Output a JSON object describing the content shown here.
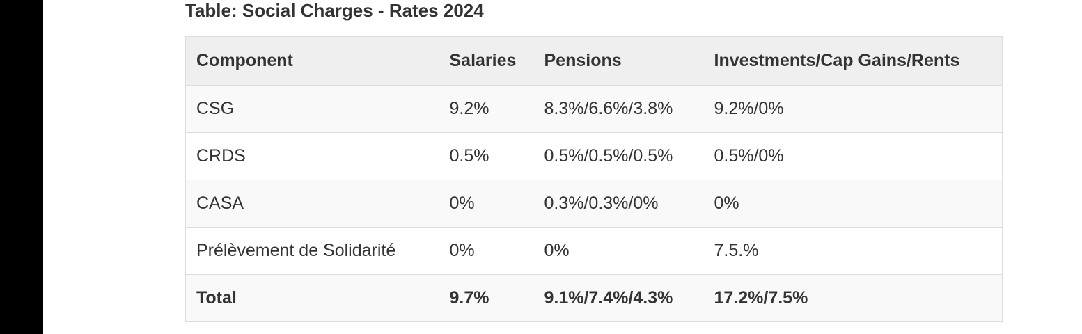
{
  "caption": "Table: Social Charges - Rates 2024",
  "table": {
    "headers": [
      "Component",
      "Salaries",
      "Pensions",
      "Investments/Cap Gains/Rents"
    ],
    "rows": [
      [
        "CSG",
        "9.2%",
        "8.3%/6.6%/3.8%",
        "9.2%/0%"
      ],
      [
        "CRDS",
        "0.5%",
        "0.5%/0.5%/0.5%",
        "0.5%/0%"
      ],
      [
        "CASA",
        "0%",
        "0.3%/0.3%/0%",
        "0%"
      ],
      [
        "Prélèvement de Solidarité",
        "0%",
        "0%",
        "7.5.%"
      ]
    ],
    "total": [
      "Total",
      "9.7%",
      "9.1%/7.4%/4.3%",
      "17.2%/7.5%"
    ]
  }
}
